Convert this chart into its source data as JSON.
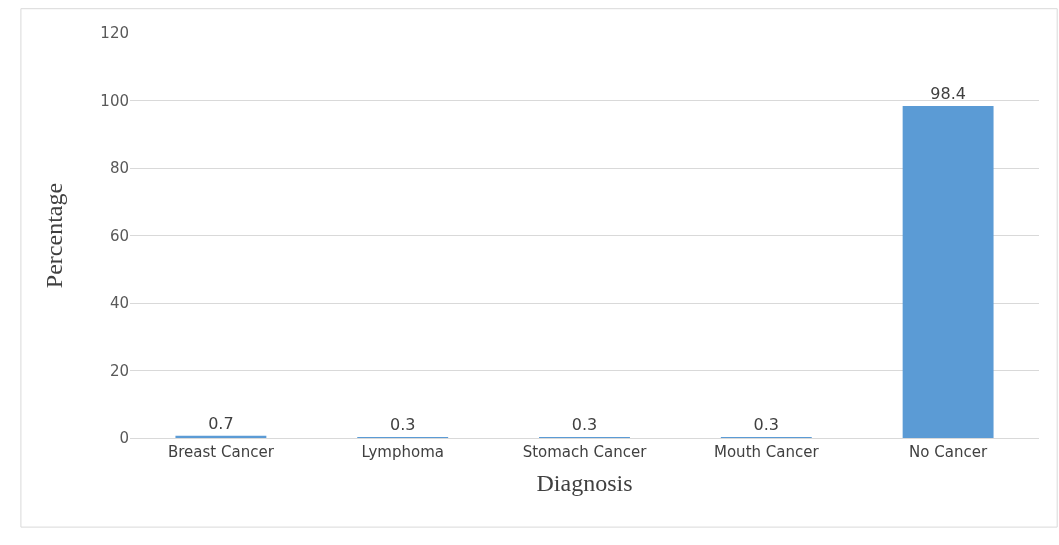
{
  "chart_data": {
    "type": "bar",
    "xlabel": "Diagnosis",
    "ylabel": "Percentage",
    "categories": [
      "Breast Cancer",
      "Lymphoma",
      "Stomach Cancer",
      "Mouth Cancer",
      "No Cancer"
    ],
    "values": [
      0.7,
      0.3,
      0.3,
      0.3,
      98.4
    ],
    "color": "#5b9bd5",
    "ylim": [
      0,
      120
    ],
    "yticks": [
      0,
      20,
      40,
      60,
      80,
      100,
      120
    ],
    "grid": "y",
    "data_labels": true
  }
}
